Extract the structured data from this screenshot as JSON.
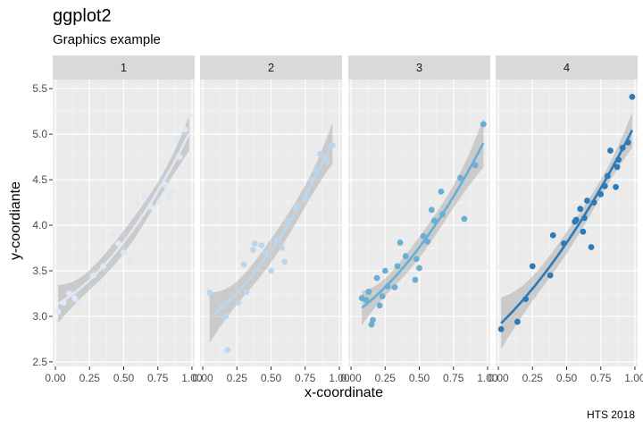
{
  "chart_data": {
    "type": "scatter",
    "title": "ggplot2",
    "subtitle": "Graphics example",
    "xlabel": "x-coordinate",
    "ylabel": "y-coordiante",
    "caption": "HTS 2018",
    "xlim": [
      -0.02,
      1.02
    ],
    "ylim": [
      2.45,
      5.6
    ],
    "x_ticks": [
      0.0,
      0.25,
      0.5,
      0.75,
      1.0
    ],
    "x_tick_labels": [
      "0.00",
      "0.25",
      "0.50",
      "0.75",
      "1.00"
    ],
    "y_ticks": [
      2.5,
      3.0,
      3.5,
      4.0,
      4.5,
      5.0,
      5.5
    ],
    "y_tick_labels": [
      "2.5",
      "3.0",
      "3.5",
      "4.0",
      "4.5",
      "5.0",
      "5.5"
    ],
    "grid": true,
    "smooth": "quadratic fit with confidence band",
    "facets": [
      {
        "label": "1",
        "color": "#dfe8f6",
        "points": [
          [
            0.02,
            3.05
          ],
          [
            0.06,
            3.15
          ],
          [
            0.1,
            3.25
          ],
          [
            0.14,
            3.2
          ],
          [
            0.17,
            3.15
          ],
          [
            0.22,
            3.65
          ],
          [
            0.28,
            3.45
          ],
          [
            0.35,
            3.55
          ],
          [
            0.42,
            3.9
          ],
          [
            0.46,
            3.8
          ],
          [
            0.5,
            3.7
          ],
          [
            0.55,
            3.62
          ],
          [
            0.6,
            4.25
          ],
          [
            0.65,
            4.3
          ],
          [
            0.7,
            4.2
          ],
          [
            0.76,
            4.25
          ],
          [
            0.8,
            4.45
          ],
          [
            0.83,
            4.32
          ],
          [
            0.86,
            4.38
          ],
          [
            0.88,
            4.95
          ],
          [
            0.91,
            4.75
          ],
          [
            0.95,
            5.05
          ],
          [
            0.98,
            5.2
          ]
        ]
      },
      {
        "label": "2",
        "color": "#bcd7ed",
        "points": [
          [
            0.05,
            3.26
          ],
          [
            0.14,
            3.1
          ],
          [
            0.17,
            3.0
          ],
          [
            0.18,
            2.63
          ],
          [
            0.26,
            3.15
          ],
          [
            0.3,
            3.57
          ],
          [
            0.32,
            3.27
          ],
          [
            0.37,
            3.73
          ],
          [
            0.38,
            3.8
          ],
          [
            0.43,
            3.78
          ],
          [
            0.46,
            3.7
          ],
          [
            0.5,
            3.5
          ],
          [
            0.54,
            3.84
          ],
          [
            0.58,
            3.75
          ],
          [
            0.6,
            3.6
          ],
          [
            0.62,
            4.05
          ],
          [
            0.68,
            4.2
          ],
          [
            0.76,
            4.3
          ],
          [
            0.8,
            4.5
          ],
          [
            0.83,
            4.6
          ],
          [
            0.86,
            4.78
          ],
          [
            0.89,
            4.74
          ],
          [
            0.92,
            4.7
          ],
          [
            0.95,
            4.88
          ]
        ]
      },
      {
        "label": "3",
        "color": "#6aaed6",
        "points": [
          [
            0.08,
            3.2
          ],
          [
            0.11,
            3.18
          ],
          [
            0.13,
            3.27
          ],
          [
            0.15,
            2.91
          ],
          [
            0.16,
            2.96
          ],
          [
            0.19,
            3.42
          ],
          [
            0.21,
            3.12
          ],
          [
            0.23,
            3.22
          ],
          [
            0.25,
            3.5
          ],
          [
            0.27,
            3.33
          ],
          [
            0.32,
            3.32
          ],
          [
            0.34,
            3.55
          ],
          [
            0.36,
            3.81
          ],
          [
            0.4,
            3.66
          ],
          [
            0.47,
            3.4
          ],
          [
            0.48,
            3.63
          ],
          [
            0.5,
            3.53
          ],
          [
            0.53,
            3.88
          ],
          [
            0.56,
            3.82
          ],
          [
            0.59,
            4.17
          ],
          [
            0.61,
            4.05
          ],
          [
            0.66,
            4.37
          ],
          [
            0.67,
            4.12
          ],
          [
            0.8,
            4.52
          ],
          [
            0.83,
            4.07
          ],
          [
            0.91,
            4.66
          ],
          [
            0.97,
            5.11
          ]
        ]
      },
      {
        "label": "4",
        "color": "#2b7bba",
        "points": [
          [
            0.02,
            2.86
          ],
          [
            0.14,
            2.94
          ],
          [
            0.2,
            3.19
          ],
          [
            0.25,
            3.55
          ],
          [
            0.38,
            3.45
          ],
          [
            0.4,
            3.89
          ],
          [
            0.48,
            3.8
          ],
          [
            0.56,
            4.04
          ],
          [
            0.57,
            4.06
          ],
          [
            0.6,
            4.18
          ],
          [
            0.62,
            3.93
          ],
          [
            0.63,
            4.08
          ],
          [
            0.65,
            4.27
          ],
          [
            0.68,
            3.76
          ],
          [
            0.7,
            4.25
          ],
          [
            0.75,
            4.34
          ],
          [
            0.78,
            4.43
          ],
          [
            0.8,
            4.54
          ],
          [
            0.82,
            4.82
          ],
          [
            0.86,
            4.42
          ],
          [
            0.87,
            4.64
          ],
          [
            0.88,
            4.72
          ],
          [
            0.91,
            4.85
          ],
          [
            0.95,
            4.91
          ],
          [
            0.98,
            5.41
          ]
        ]
      }
    ]
  }
}
